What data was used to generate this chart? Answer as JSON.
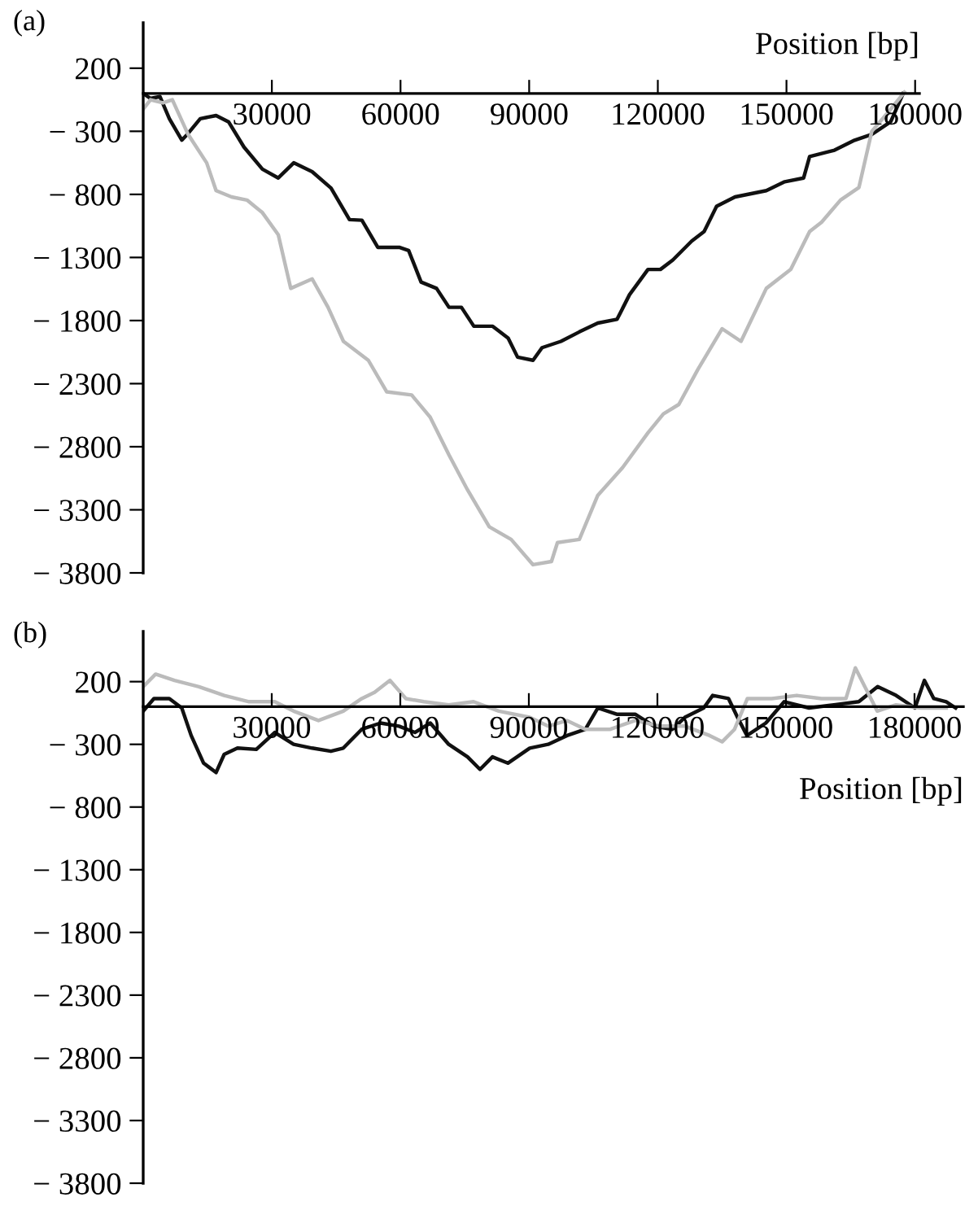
{
  "chart_data": [
    {
      "type": "line",
      "title": "(a)",
      "xlabel": "Position [bp]",
      "xlim": [
        0,
        181000
      ],
      "ylim": [
        -3800,
        560
      ],
      "xticks": [
        30000,
        60000,
        90000,
        120000,
        150000,
        180000
      ],
      "yticks": [
        200,
        {
          "value": -300,
          "label": "− 300"
        },
        {
          "value": -800,
          "label": "− 800"
        },
        {
          "value": -1300,
          "label": "− 1300"
        },
        {
          "value": -1800,
          "label": "− 1800"
        },
        {
          "value": -2300,
          "label": "− 2300"
        },
        {
          "value": -2800,
          "label": "− 2800"
        },
        {
          "value": -3300,
          "label": "− 3300"
        },
        {
          "value": -3800,
          "label": "− 3800"
        }
      ],
      "grid": false,
      "series": [
        {
          "color": "#111111",
          "x": [
            0,
            1700,
            3900,
            6100,
            9000,
            10400,
            13300,
            17000,
            19900,
            23500,
            27800,
            31500,
            35100,
            39400,
            43800,
            48100,
            51000,
            54700,
            59700,
            61900,
            64800,
            68400,
            71300,
            74200,
            77100,
            81500,
            85100,
            87300,
            90900,
            93000,
            97400,
            101700,
            106000,
            110500,
            113400,
            117700,
            120600,
            123500,
            127900,
            130800,
            133700,
            138000,
            145300,
            149600,
            154000,
            155400,
            161200,
            165600,
            169900,
            174300,
            177200
          ],
          "values": [
            0,
            -40,
            -25,
            -200,
            -370,
            -320,
            -200,
            -175,
            -225,
            -425,
            -600,
            -670,
            -550,
            -620,
            -750,
            -1000,
            -1005,
            -1220,
            -1220,
            -1245,
            -1495,
            -1545,
            -1695,
            -1695,
            -1845,
            -1845,
            -1940,
            -2090,
            -2115,
            -2015,
            -1965,
            -1890,
            -1820,
            -1790,
            -1595,
            -1395,
            -1395,
            -1320,
            -1170,
            -1095,
            -895,
            -820,
            -770,
            -700,
            -670,
            -500,
            -450,
            -375,
            -325,
            -225,
            0
          ]
        },
        {
          "color": "#bbbbbb",
          "x": [
            0,
            1700,
            4600,
            6800,
            10400,
            14800,
            17000,
            20600,
            24200,
            27800,
            31500,
            34400,
            39400,
            43100,
            46700,
            52500,
            56800,
            62600,
            66900,
            71300,
            75600,
            80700,
            85800,
            90900,
            95200,
            96600,
            101700,
            106000,
            111800,
            117700,
            121300,
            124900,
            129300,
            135000,
            139400,
            145300,
            151000,
            155400,
            158200,
            162600,
            166900,
            169900,
            174300,
            177500
          ],
          "values": [
            -125,
            -50,
            -75,
            -50,
            -320,
            -550,
            -770,
            -820,
            -845,
            -945,
            -1120,
            -1545,
            -1470,
            -1695,
            -1965,
            -2115,
            -2365,
            -2390,
            -2565,
            -2865,
            -3140,
            -3435,
            -3535,
            -3735,
            -3710,
            -3560,
            -3535,
            -3185,
            -2965,
            -2690,
            -2540,
            -2465,
            -2190,
            -1865,
            -1965,
            -1545,
            -1395,
            -1095,
            -1020,
            -845,
            -745,
            -300,
            -125,
            10
          ]
        }
      ]
    },
    {
      "type": "line",
      "title": "(b)",
      "xlabel": "Position [bp]",
      "xlim": [
        0,
        191400
      ],
      "ylim": [
        -3800,
        600
      ],
      "xticks": [
        30000,
        60000,
        90000,
        120000,
        150000,
        180000
      ],
      "yticks": [
        200,
        {
          "value": -300,
          "label": "− 300"
        },
        {
          "value": -800,
          "label": "− 800"
        },
        {
          "value": -1300,
          "label": "− 1300"
        },
        {
          "value": -1800,
          "label": "− 1800"
        },
        {
          "value": -2300,
          "label": "− 2300"
        },
        {
          "value": -2800,
          "label": "− 2800"
        },
        {
          "value": -3300,
          "label": "− 3300"
        },
        {
          "value": -3800,
          "label": "− 3800"
        }
      ],
      "grid": false,
      "series": [
        {
          "color": "#111111",
          "x": [
            0,
            2500,
            6100,
            9000,
            11200,
            14100,
            17000,
            18900,
            22000,
            26400,
            30700,
            35100,
            39400,
            43800,
            46700,
            51000,
            55400,
            59700,
            63400,
            67000,
            71300,
            75700,
            78600,
            81500,
            85100,
            90200,
            94500,
            98900,
            103200,
            106100,
            110500,
            114800,
            119200,
            123500,
            126400,
            130800,
            132900,
            136600,
            138700,
            140900,
            145300,
            149600,
            155400,
            161200,
            167000,
            171400,
            175700,
            180100,
            182300,
            184500,
            187400,
            189600
          ],
          "values": [
            -35,
            65,
            65,
            -10,
            -230,
            -450,
            -525,
            -380,
            -330,
            -340,
            -205,
            -300,
            -330,
            -355,
            -330,
            -180,
            -130,
            -155,
            -205,
            -130,
            -300,
            -400,
            -500,
            -400,
            -450,
            -330,
            -300,
            -230,
            -180,
            -10,
            -60,
            -60,
            -155,
            -180,
            -85,
            -10,
            90,
            65,
            -85,
            -230,
            -130,
            40,
            -10,
            15,
            40,
            160,
            90,
            -10,
            210,
            65,
            40,
            -10
          ]
        },
        {
          "color": "#bbbbbb",
          "x": [
            0,
            2900,
            7300,
            13000,
            18900,
            24700,
            30700,
            35100,
            40900,
            46700,
            51000,
            54000,
            57600,
            61300,
            65500,
            71300,
            77100,
            83000,
            90200,
            94500,
            98900,
            103200,
            109000,
            114800,
            120600,
            126400,
            132200,
            135100,
            138000,
            141000,
            146700,
            152500,
            158300,
            164000,
            166200,
            168400,
            171300,
            175700,
            181500,
            187400
          ],
          "values": [
            160,
            260,
            210,
            160,
            90,
            40,
            40,
            -35,
            -110,
            -35,
            65,
            115,
            210,
            65,
            40,
            15,
            40,
            -35,
            -85,
            -155,
            -110,
            -180,
            -180,
            -110,
            -155,
            -155,
            -230,
            -280,
            -180,
            65,
            65,
            90,
            65,
            65,
            310,
            160,
            -35,
            15,
            -10,
            -10
          ]
        }
      ]
    }
  ]
}
